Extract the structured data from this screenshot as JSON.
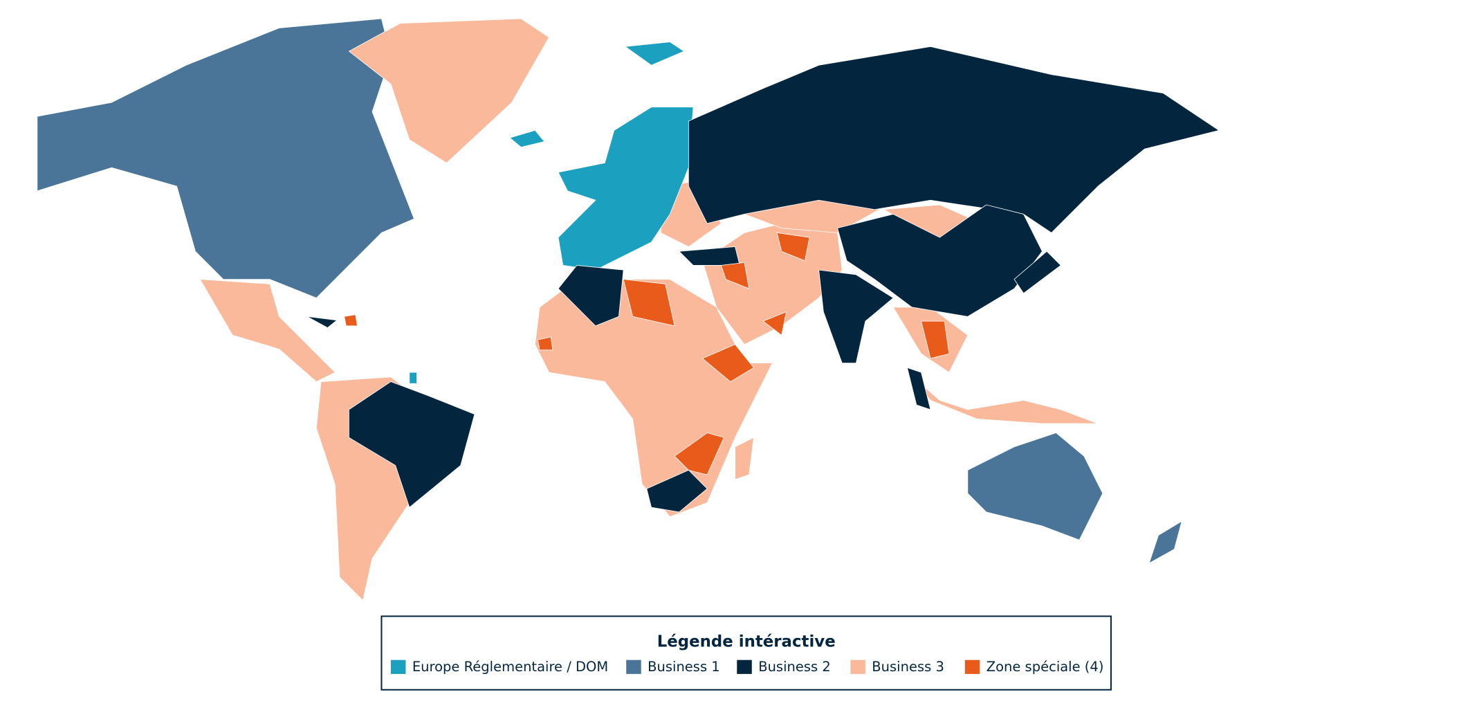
{
  "legend": {
    "title": "Légende intéractive",
    "items": [
      {
        "label": "Europe Réglementaire / DOM",
        "color": "#1ba0c0"
      },
      {
        "label": "Business 1",
        "color": "#4a7598"
      },
      {
        "label": "Business 2",
        "color": "#03263e"
      },
      {
        "label": "Business 3",
        "color": "#fbb99b"
      },
      {
        "label": "Zone spéciale (4)",
        "color": "#e85b1b"
      }
    ]
  }
}
